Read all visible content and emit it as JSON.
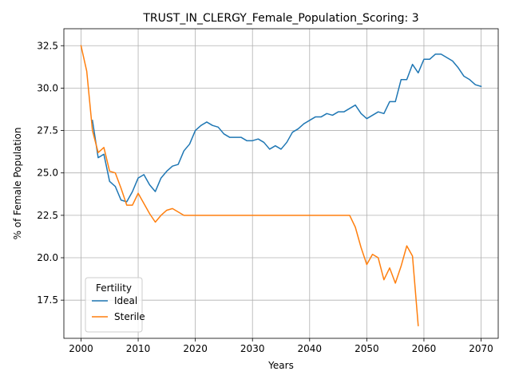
{
  "chart_data": {
    "type": "line",
    "title": "TRUST_IN_CLERGY_Female_Population_Scoring: 3",
    "xlabel": "Years",
    "ylabel": "% of Female Population",
    "xlim": [
      1997,
      2073
    ],
    "ylim": [
      15.25,
      33.5
    ],
    "xticks": [
      2000,
      2010,
      2020,
      2030,
      2040,
      2050,
      2060,
      2070
    ],
    "yticks": [
      17.5,
      20.0,
      22.5,
      25.0,
      27.5,
      30.0,
      32.5
    ],
    "ytick_labels": [
      "17.5",
      "20.0",
      "22.5",
      "25.0",
      "27.5",
      "30.0",
      "32.5"
    ],
    "grid": true,
    "legend": {
      "title": "Fertility",
      "position": "lower-left"
    },
    "series": [
      {
        "name": "Ideal",
        "color": "#1f77b4",
        "x": [
          2002,
          2003,
          2004,
          2005,
          2006,
          2007,
          2008,
          2009,
          2010,
          2011,
          2012,
          2013,
          2014,
          2015,
          2016,
          2017,
          2018,
          2019,
          2020,
          2021,
          2022,
          2023,
          2024,
          2025,
          2026,
          2027,
          2028,
          2029,
          2030,
          2031,
          2032,
          2033,
          2034,
          2035,
          2036,
          2037,
          2038,
          2039,
          2040,
          2041,
          2042,
          2043,
          2044,
          2045,
          2046,
          2047,
          2048,
          2049,
          2050,
          2051,
          2052,
          2053,
          2054,
          2055,
          2056,
          2057,
          2058,
          2059,
          2060,
          2061,
          2062,
          2063,
          2064,
          2065,
          2066,
          2067,
          2068,
          2069,
          2070
        ],
        "y": [
          28.1,
          25.9,
          26.1,
          24.5,
          24.2,
          23.4,
          23.3,
          23.9,
          24.7,
          24.9,
          24.3,
          23.9,
          24.7,
          25.1,
          25.4,
          25.5,
          26.3,
          26.7,
          27.5,
          27.8,
          28.0,
          27.8,
          27.7,
          27.3,
          27.1,
          27.1,
          27.1,
          26.9,
          26.9,
          27.0,
          26.8,
          26.4,
          26.6,
          26.4,
          26.8,
          27.4,
          27.6,
          27.9,
          28.1,
          28.3,
          28.3,
          28.5,
          28.4,
          28.6,
          28.6,
          28.8,
          29.0,
          28.5,
          28.2,
          28.4,
          28.6,
          28.5,
          29.2,
          29.2,
          30.5,
          30.5,
          31.4,
          30.9,
          31.7,
          31.7,
          32.0,
          32.0,
          31.8,
          31.6,
          31.2,
          30.7,
          30.5,
          30.2,
          30.1
        ]
      },
      {
        "name": "Sterile",
        "color": "#ff7f0e",
        "x": [
          2000,
          2001,
          2002,
          2003,
          2004,
          2005,
          2006,
          2007,
          2008,
          2009,
          2010,
          2011,
          2012,
          2013,
          2014,
          2015,
          2016,
          2017,
          2018,
          2019,
          2020,
          2021,
          2022,
          2023,
          2024,
          2025,
          2026,
          2027,
          2028,
          2029,
          2030,
          2031,
          2032,
          2033,
          2034,
          2035,
          2036,
          2037,
          2038,
          2039,
          2040,
          2041,
          2042,
          2043,
          2044,
          2045,
          2046,
          2047,
          2048,
          2049,
          2050,
          2051,
          2052,
          2053,
          2054,
          2055,
          2056,
          2057,
          2058,
          2059
        ],
        "y": [
          32.5,
          31.0,
          27.5,
          26.2,
          26.5,
          25.1,
          25.0,
          24.1,
          23.1,
          23.1,
          23.8,
          23.2,
          22.6,
          22.1,
          22.5,
          22.8,
          22.9,
          22.7,
          22.5,
          22.5,
          22.5,
          22.5,
          22.5,
          22.5,
          22.5,
          22.5,
          22.5,
          22.5,
          22.5,
          22.5,
          22.5,
          22.5,
          22.5,
          22.5,
          22.5,
          22.5,
          22.5,
          22.5,
          22.5,
          22.5,
          22.5,
          22.5,
          22.5,
          22.5,
          22.5,
          22.5,
          22.5,
          22.5,
          21.8,
          20.6,
          19.6,
          20.2,
          20.0,
          18.7,
          19.4,
          18.5,
          19.5,
          20.7,
          20.1,
          16.0
        ]
      }
    ]
  }
}
